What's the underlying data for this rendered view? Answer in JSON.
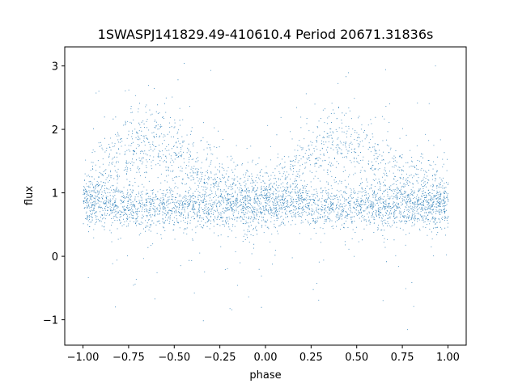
{
  "chart_data": {
    "type": "scatter",
    "title": "1SWASPJ141829.49-410610.4 Period 20671.31836s",
    "xlabel": "phase",
    "ylabel": "flux",
    "xlim": [
      -1.1,
      1.1
    ],
    "ylim": [
      -1.4,
      3.3
    ],
    "x_ticks": [
      -1.0,
      -0.75,
      -0.5,
      -0.25,
      0.0,
      0.25,
      0.5,
      0.75,
      1.0
    ],
    "x_tick_labels": [
      "−1.00",
      "−0.75",
      "−0.50",
      "−0.25",
      "0.00",
      "0.25",
      "0.50",
      "0.75",
      "1.00"
    ],
    "y_ticks": [
      -1,
      0,
      1,
      2,
      3
    ],
    "y_tick_labels": [
      "−1",
      "0",
      "1",
      "2",
      "3"
    ],
    "grid": false,
    "legend": "none",
    "marker_color": "#1f77b4",
    "phase_range": [
      -1.0,
      1.0
    ],
    "series": [
      {
        "points_description_phase": [
          -1.0,
          -0.9,
          -0.8,
          -0.7,
          -0.6,
          -0.5,
          -0.4,
          -0.3,
          -0.2,
          -0.1,
          0.0,
          0.1,
          0.2,
          0.3,
          0.4,
          0.5,
          0.6,
          0.7,
          0.8,
          0.9,
          1.0
        ],
        "baseline_flux": [
          0.85,
          0.82,
          0.8,
          0.78,
          0.78,
          0.78,
          0.78,
          0.8,
          0.82,
          0.82,
          0.82,
          0.85,
          0.82,
          0.8,
          0.78,
          0.78,
          0.78,
          0.78,
          0.8,
          0.82,
          0.85
        ],
        "upper_branch_flux": [
          1.0,
          1.2,
          1.5,
          1.75,
          1.85,
          1.6,
          1.4,
          1.2,
          1.05,
          0.95,
          0.9,
          1.05,
          1.4,
          1.75,
          1.85,
          1.6,
          1.4,
          1.2,
          1.1,
          1.0,
          1.0
        ]
      }
    ]
  }
}
